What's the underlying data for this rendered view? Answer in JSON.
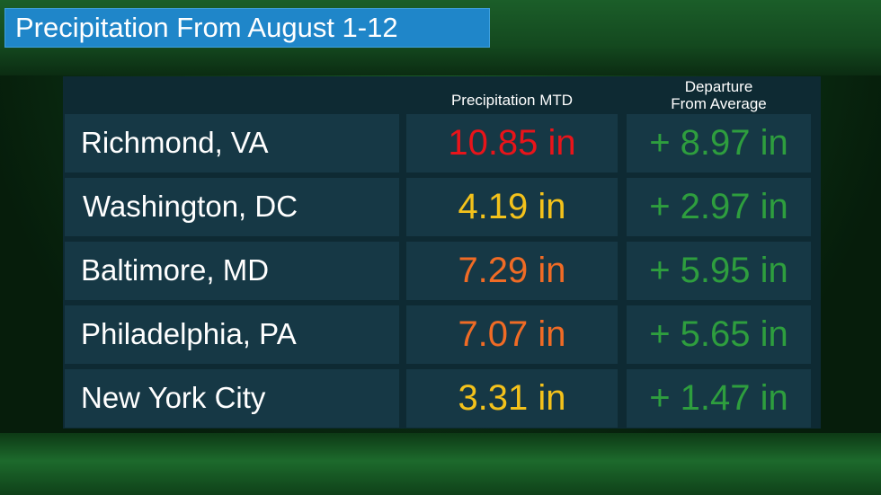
{
  "title": "Precipitation From August 1-12",
  "headers": {
    "precip": "Precipitation MTD",
    "departure_line1": "Departure",
    "departure_line2": "From Average"
  },
  "rows": [
    {
      "city": "Richmond, VA",
      "precip": "10.85 in",
      "precip_color": "#e8141a",
      "departure": "+ 8.97 in"
    },
    {
      "city": "Washington, DC",
      "precip": "4.19 in",
      "precip_color": "#f4c21b",
      "departure": "+ 2.97 in"
    },
    {
      "city": "Baltimore, MD",
      "precip": "7.29 in",
      "precip_color": "#f06b25",
      "departure": "+ 5.95 in"
    },
    {
      "city": "Philadelphia, PA",
      "precip": "7.07 in",
      "precip_color": "#f06b25",
      "departure": "+ 5.65 in"
    },
    {
      "city": "New York City",
      "precip": "3.31 in",
      "precip_color": "#f4c21b",
      "departure": "+ 1.47 in"
    }
  ],
  "colors": {
    "title_bg": "#1f86c9",
    "departure_text": "#2e9e3e"
  }
}
